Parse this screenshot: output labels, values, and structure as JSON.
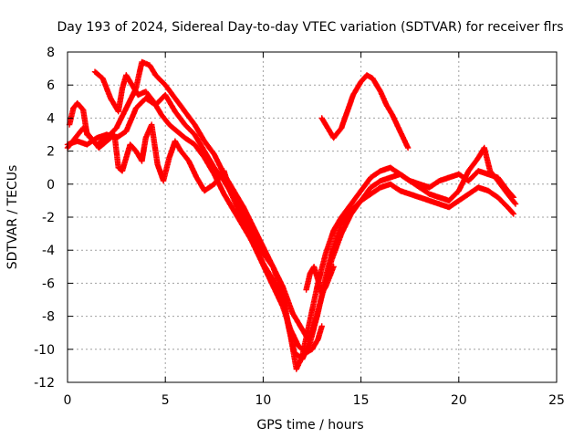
{
  "chart_data": {
    "type": "scatter",
    "title": "Day 193 of 2024, Sidereal Day-to-day VTEC variation (SDTVAR) for receiver flrs",
    "xlabel": "GPS time / hours",
    "ylabel": "SDTVAR / TECUs",
    "xlim": [
      0,
      25
    ],
    "ylim": [
      -12,
      8
    ],
    "xticks": [
      "0",
      "5",
      "10",
      "15",
      "20",
      "25"
    ],
    "yticks": [
      "8",
      "6",
      "4",
      "2",
      "0",
      "-2",
      "-4",
      "-6",
      "-8",
      "-10",
      "-12"
    ],
    "grid": true,
    "marker": "+",
    "color": "#ff0000",
    "series": [
      {
        "points": [
          [
            0.0,
            2.4
          ],
          [
            0.5,
            2.6
          ],
          [
            1.0,
            2.4
          ],
          [
            1.5,
            2.8
          ],
          [
            2.0,
            3.0
          ],
          [
            2.5,
            2.8
          ],
          [
            3.0,
            3.2
          ],
          [
            3.5,
            4.6
          ],
          [
            4.0,
            5.2
          ],
          [
            4.5,
            4.8
          ],
          [
            5.0,
            5.4
          ],
          [
            5.5,
            4.4
          ],
          [
            6.0,
            3.6
          ],
          [
            6.5,
            3.0
          ],
          [
            7.0,
            2.0
          ],
          [
            7.5,
            1.0
          ],
          [
            8.0,
            0.2
          ],
          [
            8.5,
            -0.8
          ],
          [
            9.0,
            -1.8
          ],
          [
            9.5,
            -3.0
          ],
          [
            10.0,
            -4.2
          ],
          [
            10.5,
            -5.0
          ],
          [
            11.0,
            -6.2
          ],
          [
            11.5,
            -7.8
          ],
          [
            12.0,
            -8.8
          ],
          [
            12.3,
            -9.4
          ],
          [
            12.5,
            -9.0
          ],
          [
            13.0,
            -6.8
          ],
          [
            13.5,
            -4.6
          ],
          [
            14.0,
            -3.0
          ],
          [
            14.5,
            -1.8
          ],
          [
            15.0,
            -1.0
          ],
          [
            15.5,
            -0.2
          ],
          [
            16.0,
            0.2
          ],
          [
            16.5,
            0.4
          ],
          [
            17.0,
            0.6
          ],
          [
            17.5,
            0.2
          ],
          [
            18.0,
            0.0
          ],
          [
            18.5,
            -0.2
          ],
          [
            19.0,
            0.2
          ],
          [
            19.5,
            0.4
          ],
          [
            20.0,
            0.6
          ],
          [
            20.5,
            0.2
          ],
          [
            21.0,
            0.8
          ],
          [
            21.5,
            0.6
          ],
          [
            22.0,
            0.4
          ],
          [
            22.5,
            -0.4
          ],
          [
            22.8,
            -0.8
          ]
        ]
      },
      {
        "points": [
          [
            0.1,
            3.6
          ],
          [
            0.3,
            4.6
          ],
          [
            0.5,
            4.9
          ],
          [
            0.8,
            4.5
          ],
          [
            1.0,
            3.0
          ],
          [
            1.5,
            2.4
          ],
          [
            2.0,
            2.8
          ],
          [
            2.5,
            3.4
          ],
          [
            3.0,
            4.6
          ],
          [
            3.5,
            5.8
          ],
          [
            3.8,
            7.4
          ],
          [
            4.2,
            7.2
          ],
          [
            4.5,
            6.6
          ],
          [
            5.0,
            6.0
          ],
          [
            5.5,
            5.2
          ],
          [
            6.0,
            4.4
          ],
          [
            6.5,
            3.6
          ],
          [
            7.0,
            2.6
          ],
          [
            7.5,
            1.8
          ],
          [
            8.0,
            0.6
          ],
          [
            8.5,
            -0.4
          ],
          [
            9.0,
            -1.4
          ],
          [
            9.5,
            -2.6
          ],
          [
            10.0,
            -3.8
          ],
          [
            10.5,
            -5.0
          ],
          [
            11.0,
            -6.6
          ],
          [
            11.3,
            -8.6
          ],
          [
            11.6,
            -10.2
          ],
          [
            12.0,
            -10.6
          ],
          [
            12.4,
            -9.6
          ],
          [
            12.8,
            -7.8
          ],
          [
            13.2,
            -5.6
          ],
          [
            13.6,
            -3.8
          ],
          [
            14.0,
            -2.4
          ],
          [
            14.5,
            -1.6
          ],
          [
            15.0,
            -1.0
          ],
          [
            15.5,
            -0.6
          ],
          [
            16.0,
            -0.2
          ],
          [
            16.5,
            0.0
          ],
          [
            17.0,
            -0.4
          ],
          [
            17.5,
            -0.6
          ],
          [
            18.0,
            -0.8
          ],
          [
            18.5,
            -1.0
          ],
          [
            19.0,
            -1.2
          ],
          [
            19.5,
            -1.4
          ],
          [
            20.0,
            -1.0
          ],
          [
            20.5,
            -0.6
          ],
          [
            21.0,
            -0.2
          ],
          [
            21.5,
            -0.4
          ],
          [
            22.0,
            -0.8
          ],
          [
            22.5,
            -1.4
          ],
          [
            22.8,
            -1.8
          ]
        ]
      },
      {
        "points": [
          [
            1.4,
            6.8
          ],
          [
            1.8,
            6.4
          ],
          [
            2.2,
            5.2
          ],
          [
            2.6,
            4.4
          ],
          [
            2.8,
            5.8
          ],
          [
            3.0,
            6.6
          ],
          [
            3.3,
            6.0
          ],
          [
            3.6,
            5.4
          ],
          [
            4.0,
            5.6
          ],
          [
            4.4,
            5.0
          ],
          [
            4.8,
            4.2
          ],
          [
            5.2,
            3.6
          ],
          [
            5.6,
            3.2
          ],
          [
            6.0,
            2.8
          ],
          [
            6.5,
            2.4
          ],
          [
            7.0,
            1.6
          ],
          [
            7.5,
            0.6
          ],
          [
            8.0,
            -0.6
          ],
          [
            8.5,
            -1.6
          ],
          [
            9.0,
            -2.6
          ],
          [
            9.5,
            -3.6
          ],
          [
            10.0,
            -4.8
          ],
          [
            10.5,
            -5.8
          ],
          [
            11.0,
            -7.0
          ],
          [
            11.4,
            -9.2
          ],
          [
            11.7,
            -11.2
          ],
          [
            12.0,
            -10.4
          ],
          [
            12.4,
            -8.2
          ],
          [
            12.8,
            -6.0
          ],
          [
            13.2,
            -4.2
          ],
          [
            13.6,
            -2.8
          ],
          [
            14.0,
            -2.0
          ],
          [
            14.5,
            -1.2
          ],
          [
            15.0,
            -0.4
          ],
          [
            15.5,
            0.4
          ],
          [
            16.0,
            0.8
          ],
          [
            16.5,
            1.0
          ],
          [
            17.0,
            0.6
          ],
          [
            17.5,
            0.2
          ],
          [
            18.0,
            -0.2
          ],
          [
            18.5,
            -0.6
          ],
          [
            19.0,
            -0.8
          ],
          [
            19.5,
            -1.0
          ],
          [
            20.0,
            -0.4
          ],
          [
            20.5,
            0.8
          ],
          [
            21.0,
            1.6
          ],
          [
            21.3,
            2.2
          ],
          [
            21.6,
            0.8
          ],
          [
            22.0,
            0.2
          ],
          [
            22.5,
            -0.6
          ],
          [
            22.9,
            -1.2
          ]
        ]
      },
      {
        "points": [
          [
            0.0,
            2.2
          ],
          [
            0.4,
            2.8
          ],
          [
            0.8,
            3.4
          ],
          [
            1.2,
            2.8
          ],
          [
            1.6,
            2.2
          ],
          [
            2.0,
            2.6
          ],
          [
            2.4,
            3.0
          ],
          [
            2.6,
            1.0
          ],
          [
            2.8,
            0.8
          ],
          [
            3.0,
            1.6
          ],
          [
            3.2,
            2.4
          ],
          [
            3.5,
            2.0
          ],
          [
            3.8,
            1.4
          ],
          [
            4.0,
            2.8
          ],
          [
            4.3,
            3.6
          ],
          [
            4.6,
            1.2
          ],
          [
            4.9,
            0.2
          ],
          [
            5.2,
            1.6
          ],
          [
            5.5,
            2.6
          ],
          [
            5.8,
            2.0
          ],
          [
            6.2,
            1.4
          ],
          [
            6.6,
            0.4
          ],
          [
            7.0,
            -0.4
          ],
          [
            7.5,
            0.0
          ],
          [
            8.0,
            0.8
          ],
          [
            8.3,
            -0.4
          ],
          [
            8.6,
            -1.2
          ],
          [
            9.0,
            -2.2
          ],
          [
            9.4,
            -3.4
          ],
          [
            9.8,
            -4.4
          ],
          [
            10.2,
            -5.4
          ],
          [
            10.6,
            -6.4
          ],
          [
            11.0,
            -7.4
          ],
          [
            11.4,
            -8.8
          ],
          [
            11.8,
            -9.8
          ],
          [
            12.2,
            -10.2
          ],
          [
            12.5,
            -10.0
          ],
          [
            12.8,
            -9.4
          ],
          [
            13.0,
            -8.6
          ]
        ]
      },
      {
        "points": [
          [
            12.2,
            -6.4
          ],
          [
            12.4,
            -5.4
          ],
          [
            12.6,
            -5.0
          ],
          [
            12.8,
            -5.8
          ],
          [
            13.0,
            -6.6
          ],
          [
            13.2,
            -6.2
          ],
          [
            13.6,
            -5.0
          ]
        ]
      },
      {
        "points": [
          [
            13.0,
            4.0
          ],
          [
            13.3,
            3.4
          ],
          [
            13.6,
            2.8
          ],
          [
            14.0,
            3.4
          ],
          [
            14.3,
            4.4
          ],
          [
            14.6,
            5.4
          ],
          [
            15.0,
            6.2
          ],
          [
            15.3,
            6.6
          ],
          [
            15.6,
            6.4
          ],
          [
            16.0,
            5.6
          ],
          [
            16.3,
            4.8
          ],
          [
            16.6,
            4.2
          ],
          [
            17.0,
            3.2
          ],
          [
            17.4,
            2.2
          ]
        ]
      }
    ]
  }
}
